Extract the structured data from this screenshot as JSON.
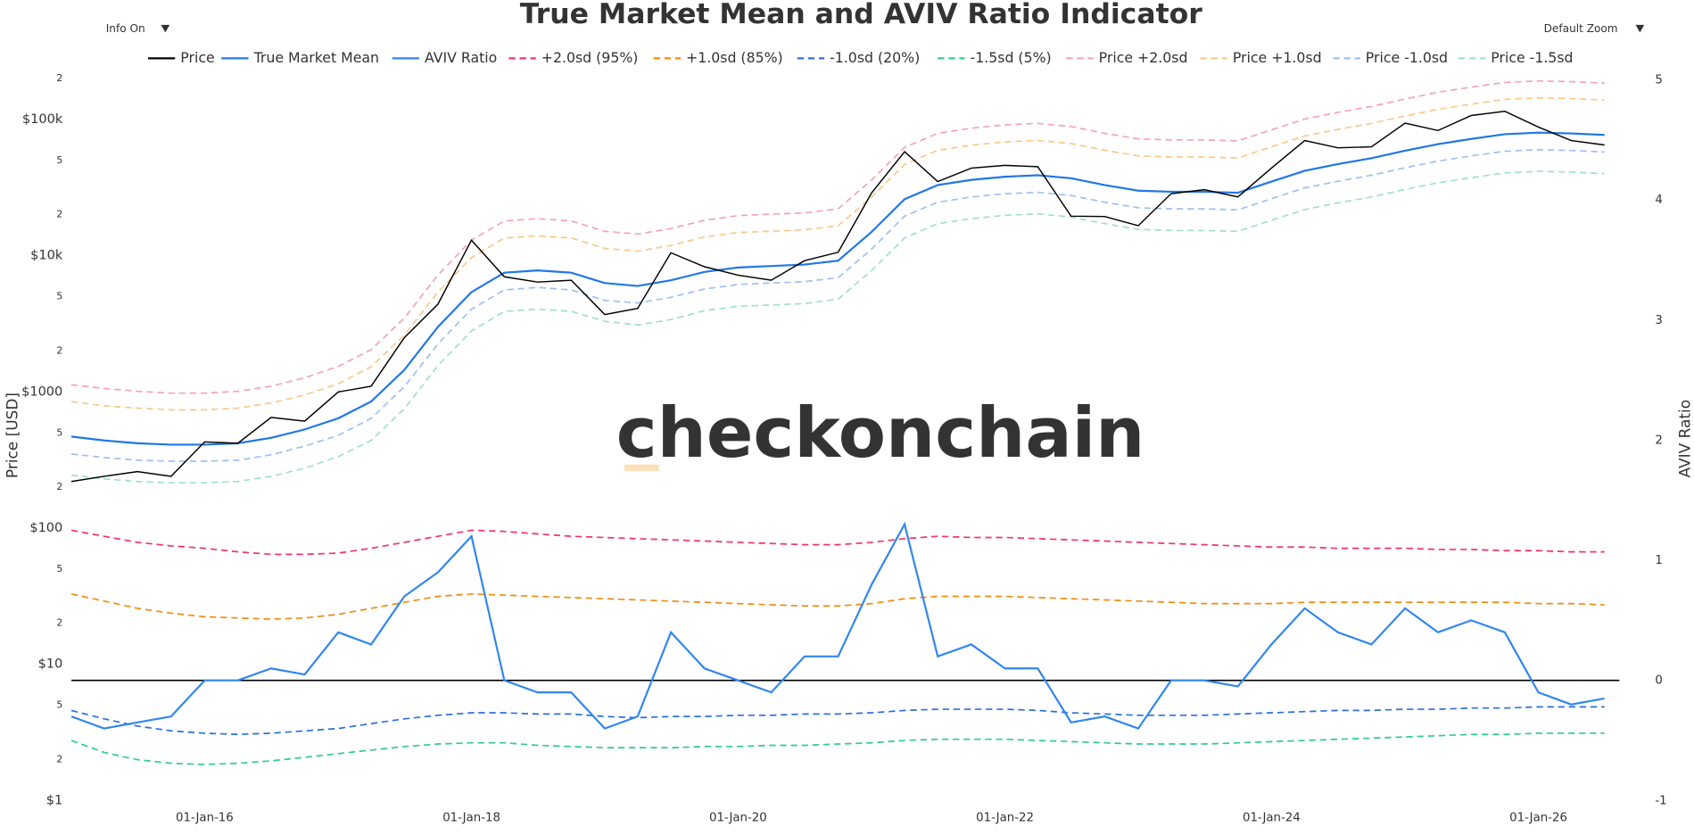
{
  "header": {
    "info_toggle": "Info On",
    "zoom_select": "Default Zoom"
  },
  "chart_data": {
    "type": "line",
    "title": "True Market Mean and AVIV Ratio Indicator",
    "watermark": "checkonchain",
    "ylabel": "Price [USD]",
    "y2label": "AVIV Ratio",
    "log_y": true,
    "grid": false,
    "legend": "top",
    "xlim": [
      "2015-01-01",
      "2026-10-15"
    ],
    "xticks": [
      {
        "value": "2016-01-01",
        "label": "01-Jan-16"
      },
      {
        "value": "2018-01-01",
        "label": "01-Jan-18"
      },
      {
        "value": "2020-01-01",
        "label": "01-Jan-20"
      },
      {
        "value": "2022-01-01",
        "label": "01-Jan-22"
      },
      {
        "value": "2024-01-01",
        "label": "01-Jan-24"
      },
      {
        "value": "2026-01-01",
        "label": "01-Jan-26"
      }
    ],
    "ylim": [
      1,
      230000
    ],
    "yticks": [
      {
        "value": 1,
        "label": "$1"
      },
      2,
      5,
      {
        "value": 10,
        "label": "$10"
      },
      {
        "value": 20,
        "label": "2"
      },
      {
        "value": 50,
        "label": "5"
      },
      {
        "value": 100,
        "label": "$100"
      },
      {
        "value": 200,
        "label": "2"
      },
      {
        "value": 500,
        "label": "5"
      },
      {
        "value": 1000,
        "label": "$1000"
      },
      {
        "value": 2000,
        "label": "2"
      },
      {
        "value": 5000,
        "label": "5"
      },
      {
        "value": 10000,
        "label": "$10k"
      },
      {
        "value": 20000,
        "label": "2"
      },
      {
        "value": 50000,
        "label": "5"
      },
      {
        "value": 100000,
        "label": "$100k"
      },
      {
        "value": 200000,
        "label": "2"
      }
    ],
    "y2lim": [
      -1,
      5.08
    ],
    "y2ticks": [
      -1,
      0,
      1,
      2,
      3,
      4,
      5
    ],
    "reference_line": {
      "axis": "y2",
      "value": 0,
      "color": "#000000"
    },
    "x": [
      "2015-01-01",
      "2015-04-01",
      "2015-07-01",
      "2015-10-01",
      "2016-01-01",
      "2016-04-01",
      "2016-07-01",
      "2016-10-01",
      "2017-01-01",
      "2017-04-01",
      "2017-07-01",
      "2017-10-01",
      "2018-01-01",
      "2018-04-01",
      "2018-07-01",
      "2018-10-01",
      "2019-01-01",
      "2019-04-01",
      "2019-07-01",
      "2019-10-01",
      "2020-01-01",
      "2020-04-01",
      "2020-07-01",
      "2020-10-01",
      "2021-01-01",
      "2021-04-01",
      "2021-07-01",
      "2021-10-01",
      "2022-01-01",
      "2022-04-01",
      "2022-07-01",
      "2022-10-01",
      "2023-01-01",
      "2023-04-01",
      "2023-07-01",
      "2023-10-01",
      "2024-01-01",
      "2024-04-01",
      "2024-07-01",
      "2024-10-01",
      "2025-01-01",
      "2025-04-01",
      "2025-07-01",
      "2025-10-01",
      "2026-01-01",
      "2026-04-01",
      "2026-07-01"
    ],
    "series": [
      {
        "name": "Price",
        "color": "#000000",
        "dash": false,
        "axis": "y",
        "values": [
          220,
          240,
          260,
          240,
          430,
          420,
          650,
          610,
          1000,
          1100,
          2500,
          4400,
          13000,
          7000,
          6400,
          6600,
          3700,
          4100,
          10500,
          8300,
          7200,
          6600,
          9200,
          10600,
          29000,
          58000,
          35000,
          44000,
          46000,
          45000,
          19500,
          19400,
          16600,
          28500,
          30500,
          27000,
          44000,
          70000,
          62000,
          63000,
          94000,
          83000,
          107000,
          115000,
          88000,
          70000,
          65000
        ]
      },
      {
        "name": "True Market Mean",
        "color": "#1f77e8",
        "dash": false,
        "axis": "y",
        "values": [
          470,
          440,
          420,
          410,
          410,
          420,
          460,
          530,
          640,
          850,
          1450,
          3000,
          5400,
          7500,
          7800,
          7500,
          6300,
          6000,
          6600,
          7600,
          8200,
          8400,
          8600,
          9200,
          15000,
          26000,
          33000,
          36000,
          38000,
          39000,
          37000,
          33000,
          30000,
          29500,
          29500,
          29000,
          35000,
          42000,
          47000,
          52000,
          59000,
          66000,
          72000,
          78000,
          80000,
          79000,
          77000
        ]
      },
      {
        "name": "AVIV Ratio",
        "color": "#2f86f0",
        "dash": false,
        "axis": "y2",
        "values": [
          -0.3,
          -0.4,
          -0.35,
          -0.3,
          0.0,
          0.0,
          0.1,
          0.05,
          0.4,
          0.3,
          0.7,
          0.9,
          1.2,
          0.0,
          -0.1,
          -0.1,
          -0.4,
          -0.3,
          0.4,
          0.1,
          0.0,
          -0.1,
          0.2,
          0.2,
          0.8,
          1.3,
          0.2,
          0.3,
          0.1,
          0.1,
          -0.35,
          -0.3,
          -0.4,
          0.0,
          0.0,
          -0.05,
          0.3,
          0.6,
          0.4,
          0.3,
          0.6,
          0.4,
          0.5,
          0.4,
          -0.1,
          -0.2,
          -0.15
        ]
      },
      {
        "name": "+2.0sd (95%)",
        "color": "#f0336e",
        "dash": true,
        "axis": "y2",
        "values": [
          1.25,
          1.2,
          1.15,
          1.12,
          1.1,
          1.07,
          1.05,
          1.05,
          1.06,
          1.1,
          1.15,
          1.2,
          1.25,
          1.24,
          1.22,
          1.2,
          1.19,
          1.18,
          1.17,
          1.16,
          1.15,
          1.14,
          1.13,
          1.13,
          1.15,
          1.18,
          1.2,
          1.19,
          1.19,
          1.18,
          1.17,
          1.16,
          1.15,
          1.14,
          1.13,
          1.12,
          1.11,
          1.11,
          1.1,
          1.1,
          1.1,
          1.09,
          1.09,
          1.08,
          1.08,
          1.07,
          1.07
        ]
      },
      {
        "name": "+1.0sd (85%)",
        "color": "#f28c0f",
        "dash": true,
        "axis": "y2",
        "values": [
          0.72,
          0.66,
          0.6,
          0.56,
          0.53,
          0.52,
          0.51,
          0.52,
          0.55,
          0.6,
          0.65,
          0.7,
          0.72,
          0.71,
          0.7,
          0.69,
          0.68,
          0.67,
          0.66,
          0.65,
          0.64,
          0.63,
          0.62,
          0.62,
          0.64,
          0.68,
          0.7,
          0.7,
          0.7,
          0.69,
          0.68,
          0.67,
          0.66,
          0.65,
          0.64,
          0.64,
          0.64,
          0.65,
          0.65,
          0.65,
          0.65,
          0.65,
          0.65,
          0.65,
          0.64,
          0.64,
          0.63
        ]
      },
      {
        "name": "-1.0sd (20%)",
        "color": "#2b6fe0",
        "dash": true,
        "axis": "y2",
        "values": [
          -0.25,
          -0.32,
          -0.38,
          -0.42,
          -0.44,
          -0.45,
          -0.44,
          -0.42,
          -0.4,
          -0.36,
          -0.32,
          -0.29,
          -0.27,
          -0.27,
          -0.28,
          -0.28,
          -0.3,
          -0.31,
          -0.3,
          -0.3,
          -0.29,
          -0.29,
          -0.28,
          -0.28,
          -0.27,
          -0.25,
          -0.24,
          -0.24,
          -0.24,
          -0.25,
          -0.27,
          -0.28,
          -0.29,
          -0.29,
          -0.29,
          -0.28,
          -0.27,
          -0.26,
          -0.25,
          -0.25,
          -0.24,
          -0.24,
          -0.23,
          -0.23,
          -0.22,
          -0.22,
          -0.22
        ]
      },
      {
        "name": "-1.5sd (5%)",
        "color": "#2ecc8f",
        "dash": true,
        "axis": "y2",
        "values": [
          -0.5,
          -0.6,
          -0.66,
          -0.69,
          -0.7,
          -0.69,
          -0.67,
          -0.64,
          -0.61,
          -0.58,
          -0.55,
          -0.53,
          -0.52,
          -0.52,
          -0.54,
          -0.55,
          -0.56,
          -0.56,
          -0.56,
          -0.55,
          -0.55,
          -0.54,
          -0.54,
          -0.53,
          -0.52,
          -0.5,
          -0.49,
          -0.49,
          -0.49,
          -0.5,
          -0.51,
          -0.52,
          -0.53,
          -0.53,
          -0.53,
          -0.52,
          -0.51,
          -0.5,
          -0.49,
          -0.48,
          -0.47,
          -0.46,
          -0.45,
          -0.45,
          -0.44,
          -0.44,
          -0.44
        ]
      },
      {
        "name": "Price +2.0sd",
        "color": "#f5a3b8",
        "dash": true,
        "axis": "y",
        "values": [
          1130,
          1060,
          1010,
          980,
          980,
          1010,
          1100,
          1270,
          1540,
          2040,
          3480,
          7200,
          13000,
          18000,
          18700,
          18000,
          15100,
          14400,
          15800,
          18200,
          19700,
          20200,
          20600,
          22100,
          36000,
          62400,
          79200,
          86400,
          91200,
          93600,
          88800,
          79200,
          72000,
          70800,
          70800,
          69600,
          84000,
          100800,
          112800,
          124800,
          141600,
          158400,
          172800,
          187200,
          192000,
          189600,
          184800
        ]
      },
      {
        "name": "Price +1.0sd",
        "color": "#f8c98a",
        "dash": true,
        "axis": "y",
        "values": [
          850,
          790,
          760,
          740,
          740,
          760,
          830,
          950,
          1150,
          1530,
          2610,
          5400,
          9700,
          13500,
          14000,
          13500,
          11300,
          10800,
          11900,
          13700,
          14800,
          15100,
          15500,
          16600,
          27000,
          46800,
          59400,
          64800,
          68400,
          70200,
          66600,
          59400,
          54000,
          53100,
          53100,
          52200,
          63000,
          75600,
          84600,
          93600,
          106200,
          118800,
          129600,
          140400,
          144000,
          142200,
          138600
        ]
      },
      {
        "name": "Price -1.0sd",
        "color": "#9cc1f2",
        "dash": true,
        "axis": "y",
        "values": [
          350,
          330,
          315,
          310,
          310,
          315,
          345,
          400,
          480,
          640,
          1090,
          2250,
          4050,
          5600,
          5850,
          5600,
          4700,
          4500,
          4950,
          5700,
          6150,
          6300,
          6450,
          6900,
          11200,
          19500,
          24700,
          27000,
          28500,
          29200,
          27700,
          24700,
          22500,
          22100,
          22100,
          21700,
          26200,
          31500,
          35200,
          39000,
          44200,
          49500,
          54000,
          58500,
          60000,
          59200,
          57700
        ]
      },
      {
        "name": "Price -1.5sd",
        "color": "#9fe0cc",
        "dash": true,
        "axis": "y",
        "values": [
          245,
          230,
          220,
          215,
          215,
          220,
          240,
          275,
          335,
          440,
          750,
          1560,
          2800,
          3900,
          4050,
          3900,
          3300,
          3100,
          3400,
          3950,
          4250,
          4350,
          4450,
          4800,
          7800,
          13500,
          17200,
          18700,
          19800,
          20300,
          19200,
          17200,
          15600,
          15300,
          15300,
          15100,
          18200,
          21800,
          24400,
          27000,
          30700,
          34300,
          37400,
          40600,
          41600,
          41100,
          40000
        ]
      }
    ]
  }
}
